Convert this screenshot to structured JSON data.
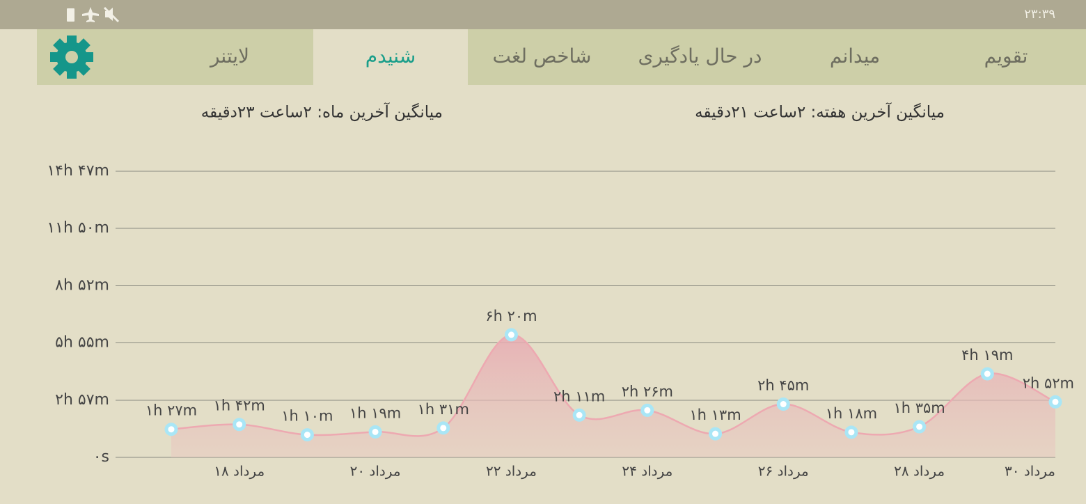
{
  "status_bar": {
    "time": "۲۳:۳۹"
  },
  "tabs": [
    "تقویم",
    "میدانم",
    "در حال یادگیری",
    "شاخص لغت",
    "شنیدم",
    "لایتنر"
  ],
  "active_tab": 4,
  "averages": {
    "week": "میانگین آخرین هفته: ۲ساعت  ۲۱دقیقه",
    "month": "میانگین آخرین ماه: ۲ساعت  ۲۳دقیقه"
  },
  "chart_data": {
    "type": "area",
    "categories": [
      null,
      "۱۸ مرداد",
      null,
      "۲۰ مرداد",
      null,
      "۲۲ مرداد",
      null,
      "۲۴ مرداد",
      null,
      "۲۶ مرداد",
      null,
      "۲۸ مرداد",
      null,
      "۳۰ مرداد"
    ],
    "values": [
      87,
      102,
      70,
      79,
      91,
      380,
      131,
      146,
      73,
      165,
      78,
      95,
      259,
      172
    ],
    "value_labels": [
      "۱h ۲۷m",
      "۱h ۴۲m",
      "۱h ۱۰m",
      "۱h ۱۹m",
      "۱h ۳۱m",
      "۶h ۲۰m",
      "۲h ۱۱m",
      "۲h ۲۶m",
      "۱h ۱۳m",
      "۲h ۴۵m",
      "۱h ۱۸m",
      "۱h ۳۵m",
      "۴h ۱۹m",
      "۲h ۵۲m"
    ],
    "color": "#eda9b1",
    "marker_color": "#a9e6f6",
    "ylim": [
      0,
      887
    ],
    "yticks": [
      {
        "value": 0,
        "label": "۰s"
      },
      {
        "value": 177,
        "label": "۲h ۵۷m"
      },
      {
        "value": 355,
        "label": "۵h ۵۵m"
      },
      {
        "value": 532,
        "label": "۸h ۵۲m"
      },
      {
        "value": 710,
        "label": "۱۱h ۵۰m"
      },
      {
        "value": 887,
        "label": "۱۴h ۴۷m"
      }
    ],
    "grid": true
  }
}
